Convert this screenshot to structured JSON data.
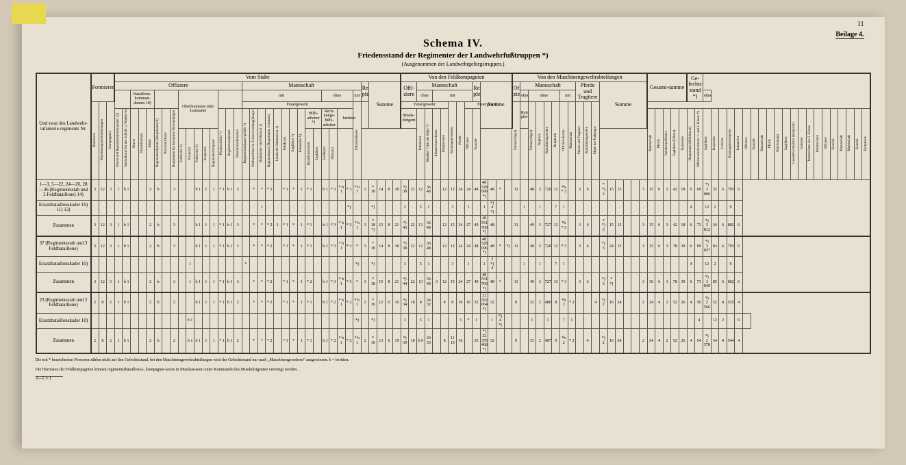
{
  "page_number": "11",
  "beilage": "Beilage 4.",
  "title": "Schema IV.",
  "subtitle": "Friedensstand der Regimenter der Landwehrfußtruppen *)",
  "subsubtitle": "(Ausgenommen der Landwehrgebirgstruppen.)",
  "stub_header": "Und zwar des Landwehr-infanterie-regiments Nr.",
  "group_headers": {
    "formieren": "Formieren",
    "vom_stabe": "Vom Stabe",
    "offiziere": "Offiziere",
    "mannschaft": "Mannschaft",
    "mit": "mit",
    "ohne": "ohne",
    "feuergewehr": "Feuergewehr",
    "reitpferde": "Reit-pferde",
    "summe": "Summe",
    "feldkompagnien": "Von den Feldkompagnien",
    "offi_ziere": "Offi-ziere",
    "mgabt": "Von den Maschinengewehrabteilungen",
    "pferde_trag": "Pferde und Tragtiere",
    "gesamt": "Gesamt-summe",
    "gefecht": "Ge-fechts-stand *)",
    "oberlt": "Oberleutnante oder Leutnante",
    "hilfs": "Hilfs-arbeiter *)",
    "rech": "Rech-nungs-hilfs-arbeiter",
    "beritten": "beritten",
    "musik": "Musik-dirigent",
    "batkom": "Bataillons-komman-danten 18)"
  },
  "col_labels": [
    "Bataillone",
    "Maschinengewehrabteilungen",
    "Kompagnien",
    "Oberst und Regimentskommandant 12)",
    "Stabsoffizier für das Schieß- u. Waffen-wesen, dann m. besonderer Verwendung (Oberst, Oberstleutnant und Major) *)",
    "Oberst",
    "Oberstleutnant",
    "Major",
    "Regimentsadjutant (Hauptmann) 8)",
    "Proviantoffizier",
    "Hauptmann für besondere Verwendungen",
    "Pionierofiizier *)",
    "Regimentsadjutant",
    "Bataillonsadjutanten",
    "Regimentsadjutant-gehilfe *)",
    "Waffenoffizier in Zeitverwendung(Haupt-mann, Oberleutnant)",
    "Regiments- und Oberarzt 1)",
    "Regimentsarzt (Hauptmann, Leutnant)",
    "Landwehr-Zahlmeister 1)",
    "Feldkurat",
    "Zugführer *)",
    "Feldwebel 9)",
    "Korporal",
    "Feldwebel 9)",
    "Korporale",
    "Regimentstrompeter",
    "Bataillonshornist",
    "Zugführer",
    "Feldkurat",
    "Oberarzt",
    "Infanterist",
    "Musiker *) für die Stäbe *)",
    "Infanteristen-diener",
    "Infanteristen",
    "Offiziersdiener",
    "Offiziere",
    "Kanzlei-",
    "Mannschaft",
    "Pferde",
    "Subalternoffiziere",
    "Zugführer (Führer)",
    "Korporale",
    "Hauptmann (Militärarzt)",
    "Offiziersstellvertreter 1. und 2. Klasse *)",
    "Zugführer",
    "Korporale",
    "Gefreite",
    "Kompagnietrompeter",
    "Infanterist",
    "Kompagnie-hornist",
    "Offiziere",
    "Kanzlei-",
    "Mannschaft",
    "Pferde",
    "Oberleutnant",
    "Zugführer",
    "Gewehrvormeister (Korporal)",
    "Gefreiter",
    "Infanteristen der 2. Klasse",
    "Infanteristen",
    "Fahner(träger)",
    "Tragtiere",
    "Offiziere",
    "Kanzlei-",
    "Mannschaft",
    "Reitpferde",
    "Maschinengewehre",
    "Mannschaft",
    "Maschinengewehre",
    "Offiziere-komp-",
    "Mannschaft",
    "Pferde und Tragtiere",
    "Maschinengewehre",
    "Mann der Fußtruppe",
    "Maschinen-gew-gefech"
  ],
  "rows": [
    {
      "label": "1—3, 5—22, 24—26, 28—36 (Regimentsstab und 3 Feldbataillone) 14)",
      "cells": [
        "3",
        "12",
        "3",
        "1",
        "b 1",
        "",
        "",
        "2",
        "b",
        "",
        "3",
        "",
        "",
        "b 1",
        "1",
        "1",
        "* 1",
        "b 1",
        "3",
        "",
        "*",
        "*",
        "* 2",
        "",
        "* 1",
        "*",
        "1",
        "* 1",
        "",
        "b 1",
        "* 3",
        "* b 1",
        "* 3",
        "* b 1",
        "3",
        "* 18",
        "14",
        "8",
        "18",
        "*) 38",
        "22",
        "12",
        "36 48",
        "",
        "12",
        "12",
        "24",
        "24",
        "48",
        "48 528 096 *)",
        "48",
        "*",
        "",
        "12",
        "",
        "48",
        "3",
        "720",
        "12",
        "*b * 3",
        "",
        "3",
        "6",
        "",
        "* *) 3",
        "15",
        "15",
        "",
        "",
        "3",
        "15",
        "6",
        "3",
        "42",
        "18",
        "6",
        "69",
        "*) 3 800",
        "32",
        "6",
        "793",
        "6"
      ]
    },
    {
      "label": "Ersatzbataillonskader 10) 11) 12)",
      "cells": [
        "",
        "",
        "",
        "",
        "",
        "",
        "",
        "",
        "",
        "",
        "",
        "",
        "",
        "",
        "",
        "",
        "",
        "",
        "",
        "",
        "",
        "1",
        "",
        "",
        "",
        "",
        "",
        "",
        "",
        "",
        "",
        "",
        "*)",
        "",
        "",
        "*)",
        "",
        "",
        "",
        "3",
        "",
        "5",
        "1",
        "",
        "",
        "3",
        "",
        "1",
        "",
        "1",
        "*) 4 *)",
        "",
        "",
        "",
        "1",
        "",
        "1",
        "",
        "7",
        "1",
        "",
        "",
        "",
        "",
        "",
        "",
        "",
        "",
        "",
        "",
        "",
        "",
        "",
        "",
        "",
        "4",
        "",
        "12",
        "2",
        "",
        "9",
        ""
      ]
    },
    {
      "label": "Zusammen",
      "cells": [
        "3",
        "12",
        "3",
        "1",
        "b 1",
        "",
        "",
        "2",
        "b",
        "",
        "3",
        "",
        "",
        "b 1",
        "1",
        "1",
        "* 1",
        "b 1",
        "3",
        "",
        "*",
        "*",
        "* 2",
        "1",
        "* 1",
        "*",
        "1",
        "* 1",
        "",
        "b 1",
        "* 3",
        "* b 1",
        "* 3",
        "* b 1",
        "3",
        "* 18 *)",
        "15",
        "8",
        "21",
        "*) 43",
        "22",
        "13",
        "36 49",
        "",
        "12",
        "15",
        "24",
        "27",
        "49",
        "48 531 700 *)",
        "48",
        "",
        "",
        "13",
        "",
        "49",
        "3",
        "727",
        "13",
        "*b * 3",
        "",
        "3",
        "6",
        "",
        "* *) 3",
        "15",
        "15",
        "",
        "",
        "3",
        "15",
        "6",
        "3",
        "42",
        "18",
        "6",
        "73",
        "*) 3 812",
        "34",
        "6",
        "802",
        "6"
      ]
    },
    {
      "label": "37 (Regimentsstab und 3 Feldbataillone)",
      "cells": [
        "3",
        "12",
        "3",
        "1",
        "b 1",
        "",
        "",
        "2",
        "b",
        "",
        "3",
        "",
        "",
        "b 1",
        "1",
        "1",
        "* 1",
        "b 1",
        "3",
        "",
        "*",
        "*",
        "* 2",
        "",
        "* 1",
        "*",
        "1",
        "* 1",
        "",
        "b 1",
        "* 3",
        "* b 1",
        "* 3",
        "*",
        "3",
        "* 18",
        "14",
        "8",
        "18",
        "*) 38",
        "22",
        "12",
        "36 48",
        "",
        "12",
        "12",
        "24",
        "24",
        "48",
        "48 528 096 *)",
        "48",
        "*",
        "*)",
        "12",
        "",
        "48",
        "3",
        "720",
        "12",
        "* 3",
        "",
        "3",
        "6",
        "",
        "*) 3",
        "24",
        "15",
        "",
        "",
        "3",
        "15",
        "6",
        "3",
        "78",
        "39",
        "6",
        "69",
        "*) 3 837",
        "83",
        "6",
        "793",
        "6"
      ]
    },
    {
      "label": "Ersatzbataillonskader 10)",
      "cells": [
        "",
        "",
        "",
        "",
        "",
        "",
        "",
        "",
        "",
        "",
        "",
        "",
        "1",
        "",
        "",
        "",
        "",
        "",
        "",
        "*",
        "",
        "",
        "",
        "",
        "",
        "",
        "",
        "",
        "",
        "",
        "",
        "",
        "",
        "*)",
        "",
        "*)",
        "",
        "",
        "",
        "3",
        "",
        "5",
        "1",
        "",
        "",
        "3",
        "",
        "1",
        "",
        "1",
        "3 *) 4",
        "",
        "",
        "",
        "1",
        "",
        "1",
        "",
        "7",
        "1",
        "",
        "",
        "",
        "",
        "",
        "",
        "",
        "",
        "",
        "",
        "",
        "",
        "",
        "",
        "",
        "4",
        "",
        "12",
        "2",
        "",
        "9",
        ""
      ]
    },
    {
      "label": "Zusammen",
      "cells": [
        "3",
        "12",
        "3",
        "1",
        "b 1",
        "",
        "",
        "2",
        "b",
        "",
        "3",
        "",
        "1",
        "b 1",
        "1",
        "1",
        "* 1",
        "b 1",
        "3",
        "",
        "*",
        "*",
        "* 2",
        "",
        "* 1",
        "*",
        "1",
        "* 2",
        "",
        "b 1",
        "* 3",
        "* b 1",
        "* 3",
        "*",
        "3",
        "* 18",
        "15",
        "8",
        "21",
        "*) 44",
        "22",
        "13",
        "36 49",
        "3",
        "12",
        "15",
        "24",
        "27",
        "49",
        "48 531 700 *)",
        "48",
        "*",
        "",
        "13",
        "",
        "49",
        "3",
        "727",
        "13",
        "* 3",
        "",
        "3",
        "6",
        "",
        "*) 3",
        "* *)",
        "",
        "",
        "",
        "3",
        "36",
        "6",
        "3",
        "78",
        "39",
        "6",
        "73",
        "*) 3 849",
        "85",
        "6",
        "802",
        "6"
      ]
    },
    {
      "label": "23 (Regimentsstab und 2 Feldbataillone)",
      "cells": [
        "2",
        "8",
        "2",
        "1",
        "b 1",
        "",
        "",
        "2",
        "b ",
        "",
        "2",
        "",
        "",
        "b 1",
        "1",
        "1",
        "* 1",
        "b 1",
        "2",
        "",
        "*",
        "*",
        "* 2",
        "",
        "* 1",
        "*",
        "1",
        "* 1",
        "",
        "b 1",
        "* 2",
        "* b 1",
        "* 2",
        "* b 1",
        "2",
        "* 16",
        "12",
        "6",
        "16",
        "*) 34",
        "18",
        "8",
        "24 32",
        "",
        "8",
        "8",
        "16",
        "16",
        "32",
        "32 352 064 *)",
        "32",
        "",
        "",
        "8",
        "",
        "32",
        "2",
        "480",
        "8",
        "*b 2",
        "* 2",
        "",
        "",
        "4",
        "*) 2",
        "16",
        "24",
        "",
        "",
        "2",
        "24",
        "4",
        "2",
        "52",
        "26",
        "4",
        "50",
        "*) 2 566",
        "52",
        "4",
        "535",
        "4"
      ]
    },
    {
      "label": "Ersatzbataillonskader 10)",
      "cells": [
        "",
        "",
        "",
        "",
        "",
        "",
        "",
        "",
        "",
        "",
        "",
        "",
        "b 1",
        "",
        "",
        "",
        "",
        "",
        "",
        "",
        "",
        "",
        "",
        "",
        "",
        "",
        "",
        "",
        "",
        "",
        "",
        "",
        "",
        "*)",
        "",
        "*)",
        "",
        "",
        "",
        "3",
        "",
        "5",
        "1",
        "",
        "",
        "",
        "3",
        "*",
        "1",
        "",
        "1",
        "*) 4 *)",
        "",
        "",
        "",
        "1",
        "",
        "1",
        "",
        "7",
        "1",
        "",
        "",
        "",
        "",
        "",
        "",
        "",
        "",
        "",
        "",
        "",
        "",
        "",
        "",
        "",
        "4",
        "",
        "12",
        "2",
        "",
        "9",
        ""
      ]
    },
    {
      "label": "Zusammen",
      "cells": [
        "2",
        "8",
        "2",
        "1",
        "b 1",
        "",
        "",
        "2",
        "b",
        "",
        "2",
        "",
        "b 1",
        "b 1",
        "1",
        "1",
        "* 1",
        "b 1",
        "2",
        "",
        "*",
        "*",
        "* 2",
        "",
        "* 1",
        "*",
        "1",
        "* 1",
        "",
        "b 1",
        "* 2",
        "* b 1",
        "* 2",
        "* b 1",
        "2",
        "* 16",
        "13",
        "6",
        "19",
        "*) 39",
        "18",
        "b 9",
        "24 33",
        "",
        "8",
        "11 19",
        "16",
        "",
        "33",
        "*) 32 355 468 *)",
        "32",
        "",
        "",
        "9",
        "",
        "33",
        "2",
        "487",
        "9",
        "*b 2",
        "* 2",
        "",
        "4",
        "",
        "*) 2",
        "16",
        "24",
        "",
        "",
        "2",
        "24",
        "4",
        "2",
        "52",
        "26",
        "4",
        "54",
        "*) 2 578",
        "54",
        "4",
        "544",
        "4"
      ]
    }
  ],
  "footnotes": [
    "Die mit * bezeichneten Personen zählen nicht auf den Gefechtsstand, bei den Maschinengewehrabteilungen wird der Gefechtsstand nur nach „Maschinengewehren\" ausgewiesen.  b = beritten.",
    "Die Hornisten der Feldkompagnien können regiments(bataillons)-, kompagnie-weise in Musikassisten unter Kommando des Musikdirigenten vereinigt werden."
  ],
  "footer_mark": "A—I, v. I"
}
